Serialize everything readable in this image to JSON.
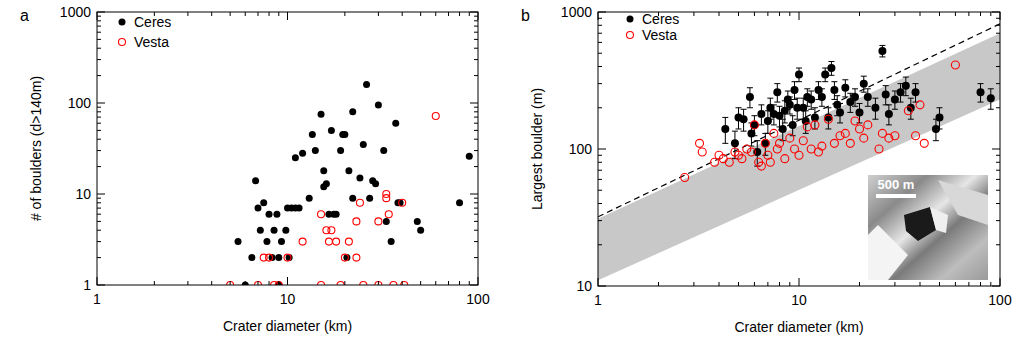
{
  "chart_data": [
    {
      "type": "scatter",
      "title": "a",
      "x_label": "Crater diameter (km)",
      "y_label": "# of boulders (d>140m)",
      "log": true,
      "legend": "upper-left",
      "xlim": [
        1,
        100
      ],
      "xticks": [
        1,
        10,
        100
      ],
      "ylim": [
        1,
        1000
      ],
      "yticks": [
        1,
        10,
        100,
        1000
      ],
      "series": [
        {
          "name": "Ceres",
          "color": "#000000",
          "marker": "filled-circle",
          "x": [
            5.5,
            6,
            6.5,
            6.8,
            7,
            7.2,
            7.5,
            7.8,
            8,
            8.3,
            8.5,
            8.8,
            9,
            9,
            9.3,
            9.8,
            10,
            10.2,
            10.5,
            11,
            11.5,
            11,
            12,
            13,
            13.5,
            14,
            15,
            15.5,
            15.5,
            16,
            16.5,
            17,
            17.5,
            18,
            19,
            19.5,
            20,
            20.5,
            21,
            22,
            22,
            24,
            25,
            26,
            27,
            28,
            29,
            30,
            32,
            33,
            35,
            37,
            38,
            39,
            48,
            50,
            80,
            90
          ],
          "values": [
            3,
            1,
            2,
            14,
            7,
            4,
            8,
            3,
            6,
            2,
            4,
            6,
            1,
            2,
            3,
            4,
            7,
            2,
            7,
            7,
            7,
            25,
            28,
            9,
            45,
            30,
            75,
            18,
            12,
            13,
            6,
            50,
            6,
            6,
            30,
            45,
            45,
            2,
            18,
            80,
            9,
            15,
            35,
            160,
            9,
            14,
            13,
            95,
            30,
            5,
            3,
            60,
            8,
            8,
            5,
            4,
            8,
            26
          ]
        },
        {
          "name": "Vesta",
          "color": "#ff0000",
          "marker": "open-circle",
          "x": [
            5,
            7,
            7.5,
            8,
            8.5,
            9,
            10,
            12,
            15,
            15,
            16,
            16.5,
            17,
            18,
            19,
            20,
            21,
            23,
            23,
            24,
            25,
            30,
            30,
            33,
            33,
            34,
            36,
            40,
            41,
            60
          ],
          "values": [
            1,
            1,
            2,
            2,
            1,
            1,
            2,
            3,
            6,
            1,
            4,
            3,
            4,
            3,
            1,
            2,
            3,
            5,
            2,
            8,
            1,
            5,
            1,
            10,
            9,
            6,
            1,
            8,
            1,
            72
          ]
        }
      ]
    },
    {
      "type": "scatter",
      "title": "b",
      "x_label": "Crater diameter (km)",
      "y_label": "Largest boulder (m)",
      "log": true,
      "legend": "upper-left",
      "annotation": "500 m",
      "xlim": [
        1,
        100
      ],
      "xticks": [
        1,
        10,
        100
      ],
      "ylim": [
        10,
        1000
      ],
      "yticks": [
        10,
        100,
        1000
      ],
      "series": [
        {
          "type": "area",
          "color": "#c8c8c8",
          "x": [
            1,
            100
          ],
          "values": [
            31,
            700
          ],
          "low": [
            11,
            230
          ]
        },
        {
          "type": "line",
          "color": "#000000",
          "line_style": "dashed",
          "x": [
            1,
            100
          ],
          "values": [
            32,
            820
          ]
        },
        {
          "name": "Ceres",
          "color": "#000000",
          "marker": "filled-circle",
          "x": [
            4.3,
            4.8,
            5,
            5.3,
            5.7,
            5.8,
            6,
            6.2,
            6.5,
            6.8,
            7,
            7.2,
            7.5,
            7.8,
            8,
            8.3,
            8.5,
            8.8,
            9,
            9.3,
            9.5,
            9.8,
            10,
            10.5,
            10.8,
            11,
            11.5,
            12,
            12.5,
            13,
            13.5,
            14,
            14.5,
            15,
            15.5,
            16,
            17,
            18,
            19,
            20,
            21,
            22,
            24,
            26,
            27,
            28,
            30,
            32,
            34,
            36,
            38,
            48,
            50,
            80,
            90
          ],
          "values": [
            140,
            110,
            170,
            165,
            240,
            130,
            150,
            95,
            180,
            110,
            160,
            200,
            180,
            260,
            175,
            140,
            190,
            230,
            210,
            150,
            270,
            200,
            350,
            200,
            160,
            240,
            230,
            170,
            270,
            240,
            350,
            170,
            390,
            270,
            210,
            185,
            280,
            220,
            240,
            185,
            300,
            240,
            200,
            520,
            250,
            180,
            230,
            260,
            290,
            200,
            260,
            140,
            170,
            260,
            235
          ],
          "errors": [
            30,
            25,
            30,
            30,
            40,
            25,
            25,
            20,
            30,
            20,
            30,
            35,
            30,
            40,
            30,
            25,
            35,
            35,
            30,
            25,
            40,
            35,
            40,
            35,
            30,
            35,
            35,
            30,
            40,
            35,
            40,
            30,
            45,
            40,
            35,
            30,
            40,
            35,
            35,
            30,
            40,
            35,
            35,
            50,
            40,
            30,
            35,
            40,
            45,
            35,
            40,
            25,
            30,
            40,
            40
          ]
        },
        {
          "name": "Vesta",
          "color": "#ff0000",
          "marker": "open-circle",
          "x": [
            2.7,
            3.2,
            3.3,
            3.8,
            4,
            4.2,
            4.5,
            4.8,
            5,
            5.2,
            5.5,
            5.8,
            6,
            6.3,
            6.5,
            6.8,
            7,
            7.2,
            7.5,
            7.8,
            8,
            8.5,
            9,
            9.5,
            10,
            10.5,
            11,
            11.5,
            12,
            12.5,
            13,
            14,
            15,
            16,
            17,
            18,
            19,
            20,
            21,
            22,
            25,
            26,
            28,
            30,
            35,
            38,
            40,
            42,
            60
          ],
          "values": [
            62,
            110,
            95,
            80,
            90,
            85,
            80,
            95,
            90,
            85,
            100,
            95,
            150,
            80,
            75,
            110,
            90,
            80,
            130,
            100,
            110,
            85,
            120,
            100,
            90,
            115,
            145,
            100,
            150,
            95,
            105,
            165,
            110,
            125,
            130,
            110,
            160,
            140,
            120,
            150,
            100,
            130,
            120,
            125,
            190,
            125,
            210,
            110,
            410
          ]
        }
      ]
    }
  ]
}
